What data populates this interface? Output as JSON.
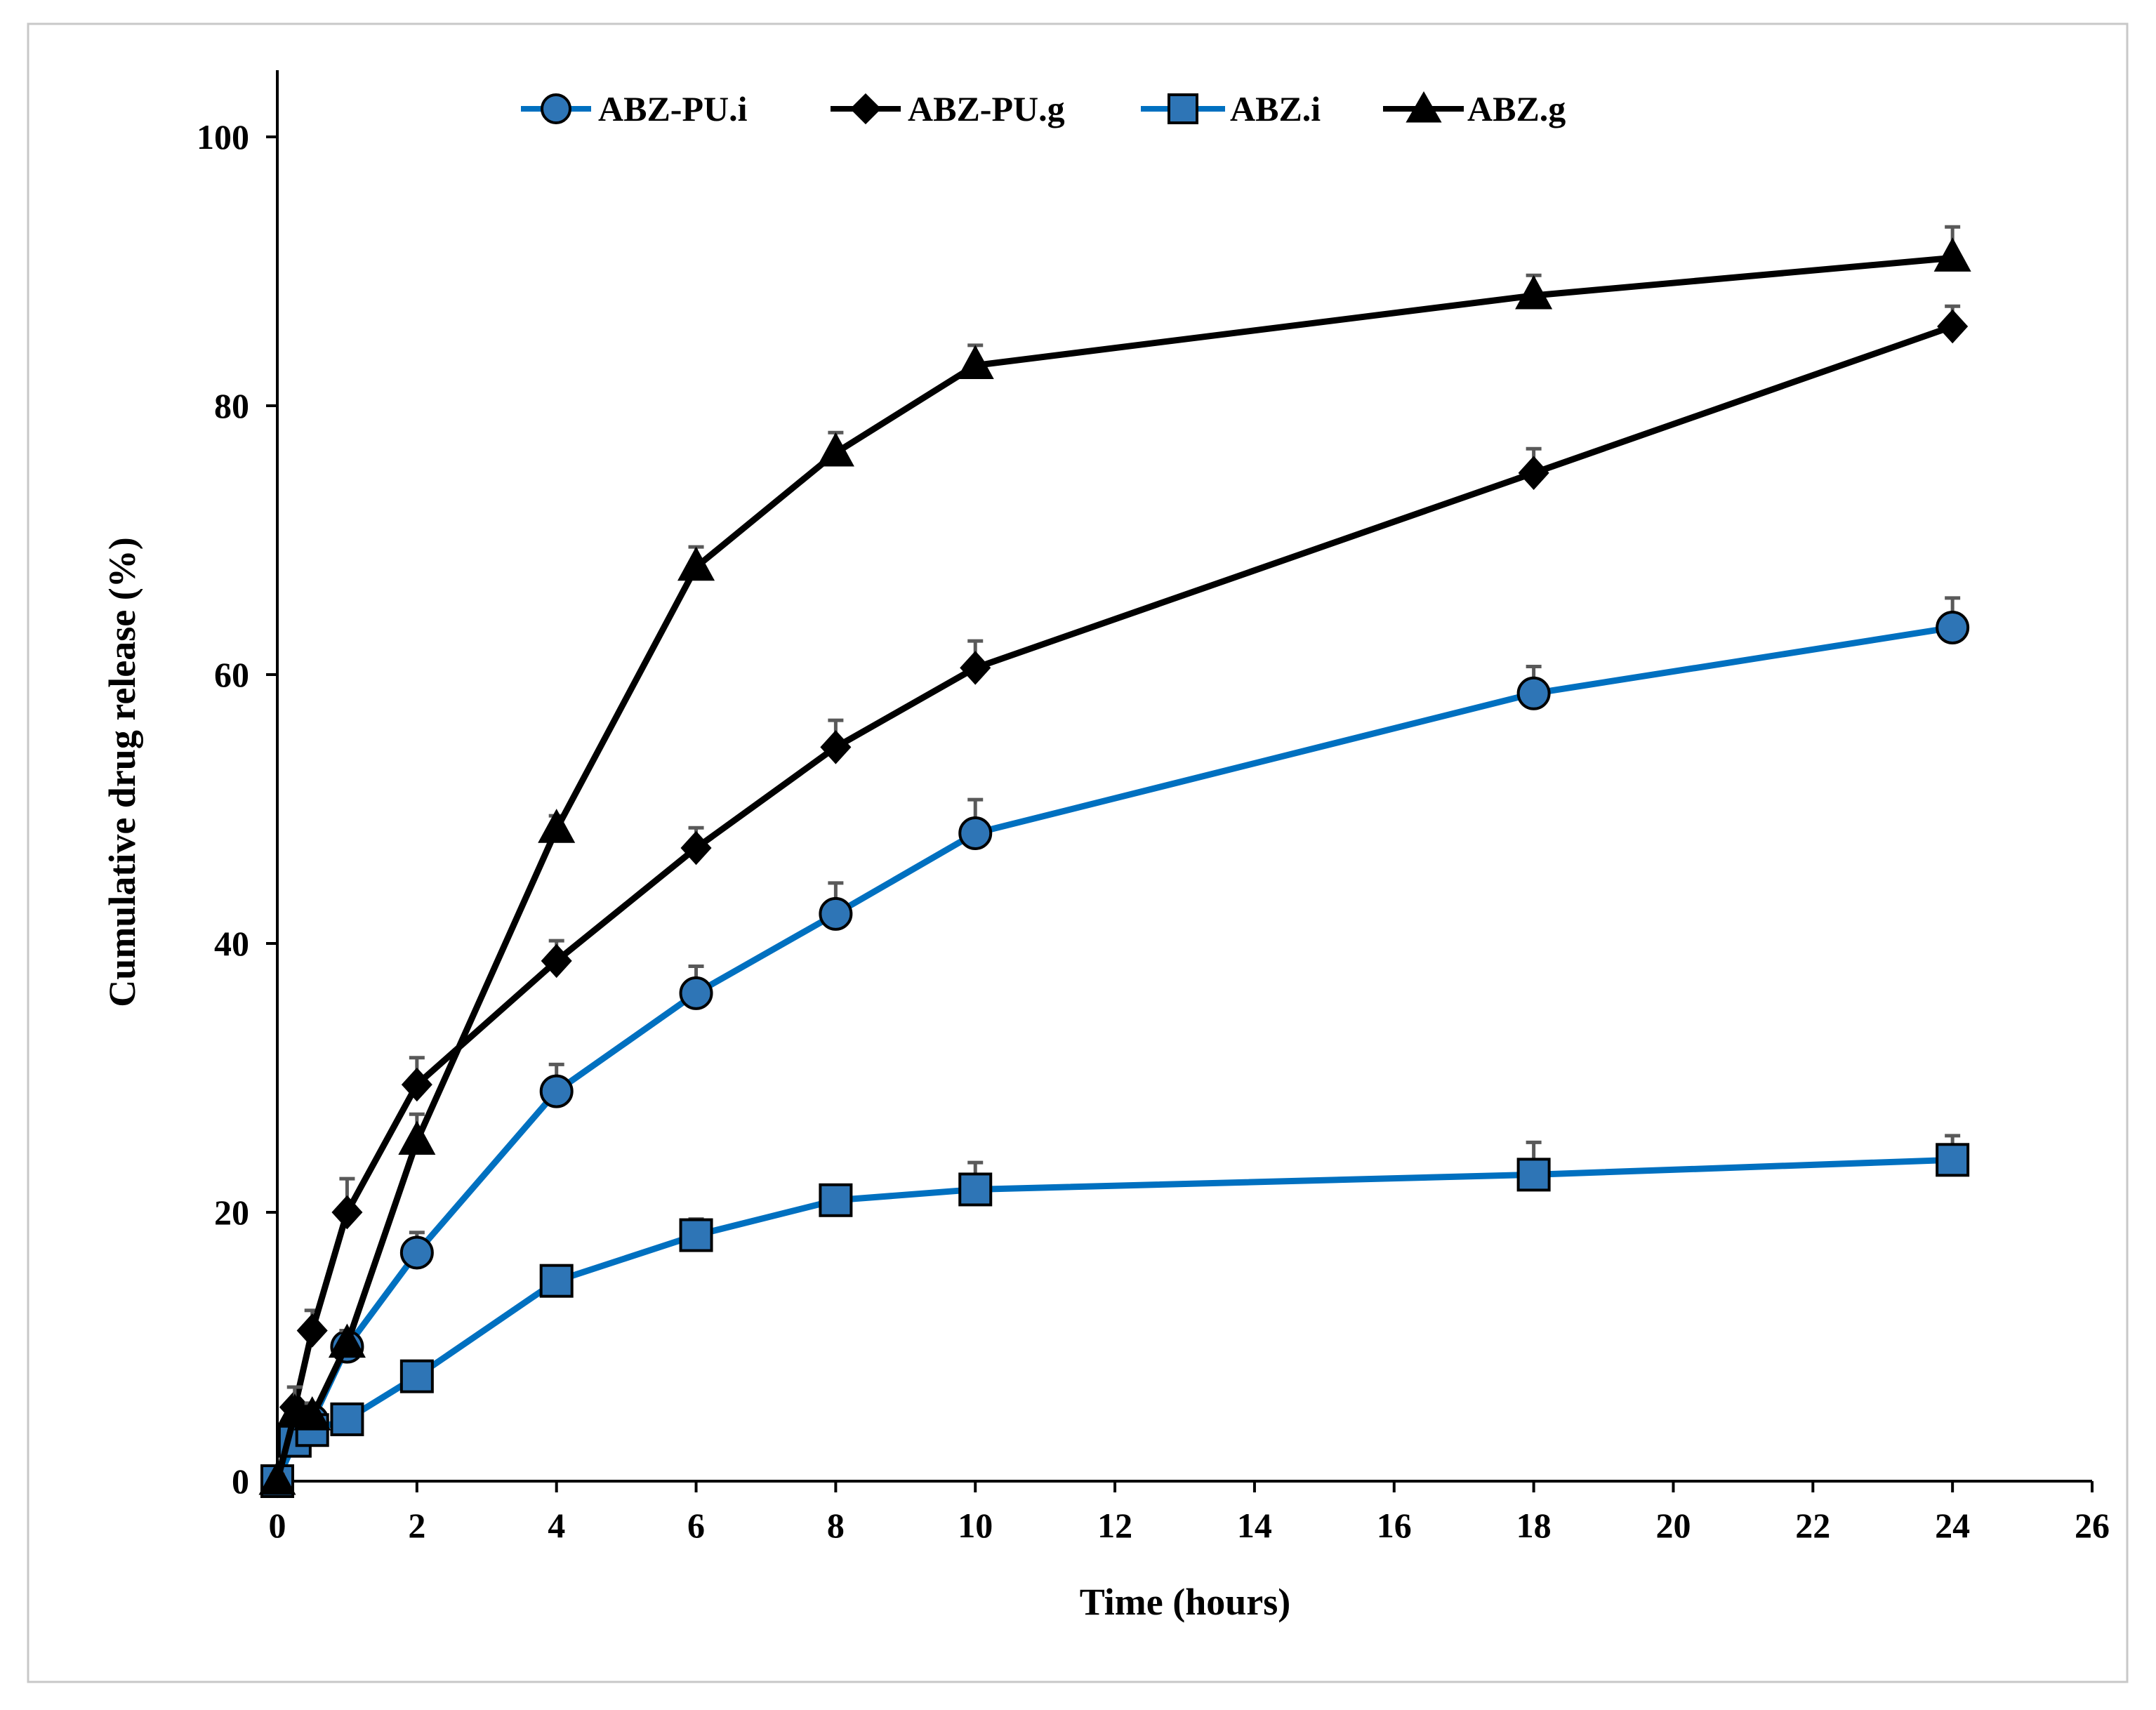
{
  "chart_data": {
    "type": "line",
    "title": "",
    "xlabel": "Time (hours)",
    "ylabel": "Cumulative drug release (%)",
    "xlim": [
      0,
      26
    ],
    "ylim": [
      0,
      100
    ],
    "x_ticks": [
      "0",
      "2",
      "4",
      "6",
      "8",
      "10",
      "12",
      "14",
      "16",
      "18",
      "20",
      "22",
      "24",
      "26"
    ],
    "y_ticks": [
      "0",
      "20",
      "40",
      "60",
      "80",
      "100"
    ],
    "grid": false,
    "legend_position": "top",
    "series": [
      {
        "name": "ABZ-PU.i",
        "color": "#0070C0",
        "marker": "circle",
        "marker_fill": "#2E75B6",
        "x": [
          0,
          0.25,
          0.5,
          1,
          2,
          4,
          6,
          8,
          10,
          18,
          24
        ],
        "y": [
          0,
          3.5,
          4.5,
          10,
          17,
          29,
          36.3,
          42.2,
          48.2,
          58.6,
          63.5
        ],
        "error": [
          0.5,
          1,
          1,
          1,
          1.5,
          2,
          2,
          2.3,
          2.5,
          2,
          2.2
        ]
      },
      {
        "name": "ABZ-PU.g",
        "color": "#000000",
        "marker": "diamond",
        "marker_fill": "#000000",
        "x": [
          0,
          0.25,
          0.5,
          1,
          2,
          4,
          6,
          8,
          10,
          18,
          24
        ],
        "y": [
          0,
          5.5,
          11.2,
          20,
          29.5,
          38.7,
          47.1,
          54.6,
          60.5,
          75,
          85.9
        ],
        "error": [
          0.5,
          1.5,
          1.5,
          2.5,
          2,
          1.5,
          1.5,
          2,
          2,
          1.8,
          1.5
        ]
      },
      {
        "name": "ABZ.i",
        "color": "#0070C0",
        "marker": "square",
        "marker_fill": "#2E75B6",
        "x": [
          0,
          0.25,
          0.5,
          1,
          2,
          4,
          6,
          8,
          10,
          18,
          24
        ],
        "y": [
          0,
          3,
          3.8,
          4.6,
          7.8,
          14.9,
          18.3,
          20.9,
          21.7,
          22.8,
          23.9
        ],
        "error": [
          0.5,
          0.8,
          0.8,
          1,
          1,
          1,
          1.2,
          1,
          2,
          2.4,
          1.8
        ]
      },
      {
        "name": "ABZ.g",
        "color": "#000000",
        "marker": "triangle",
        "marker_fill": "#000000",
        "x": [
          0,
          0.25,
          0.5,
          1,
          2,
          4,
          6,
          8,
          10,
          18,
          24
        ],
        "y": [
          0,
          5,
          4.8,
          10.2,
          25.3,
          48.5,
          68,
          76.5,
          83,
          88.2,
          91
        ],
        "error": [
          0.5,
          2,
          1,
          1,
          2,
          1,
          1.5,
          1.5,
          1.5,
          1.5,
          2.3
        ]
      }
    ]
  }
}
